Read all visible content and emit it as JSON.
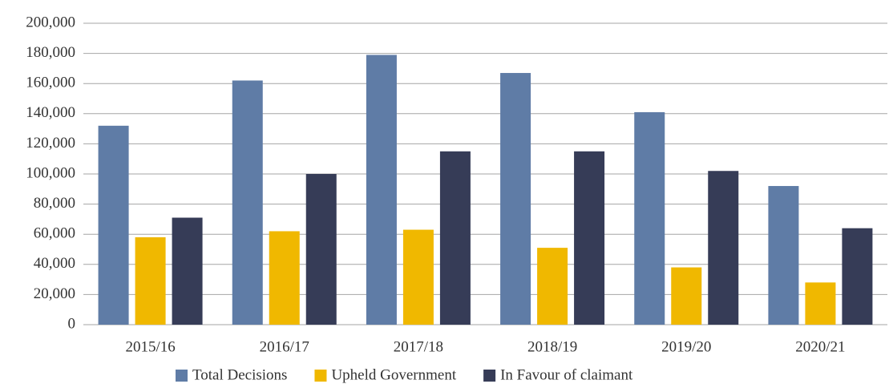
{
  "chart_data": {
    "type": "bar",
    "categories": [
      "2015/16",
      "2016/17",
      "2017/18",
      "2018/19",
      "2019/20",
      "2020/21"
    ],
    "series": [
      {
        "name": "Total Decisions",
        "color": "#5f7ca6",
        "values": [
          132000,
          162000,
          179000,
          167000,
          141000,
          92000
        ]
      },
      {
        "name": "Upheld Government",
        "color": "#f0b800",
        "values": [
          58000,
          62000,
          63000,
          51000,
          38000,
          28000
        ]
      },
      {
        "name": "In Favour of claimant",
        "color": "#363c57",
        "values": [
          71000,
          100000,
          115000,
          115000,
          102000,
          64000
        ]
      }
    ],
    "ylim": [
      0,
      200000
    ],
    "yticks": [
      0,
      {
        "value": 20000,
        "label": "20,000"
      },
      {
        "value": 40000,
        "label": "40,000"
      },
      {
        "value": 60000,
        "label": "60,000"
      },
      {
        "value": 80000,
        "label": "80,000"
      },
      {
        "value": 100000,
        "label": "100,000"
      },
      {
        "value": 120000,
        "label": "120,000"
      },
      {
        "value": 140000,
        "label": "140,000"
      },
      {
        "value": 160000,
        "label": "160,000"
      },
      {
        "value": 180000,
        "label": "180,000"
      },
      {
        "value": 200000,
        "label": "200,000"
      }
    ],
    "grid": true,
    "legend": "bottom"
  }
}
